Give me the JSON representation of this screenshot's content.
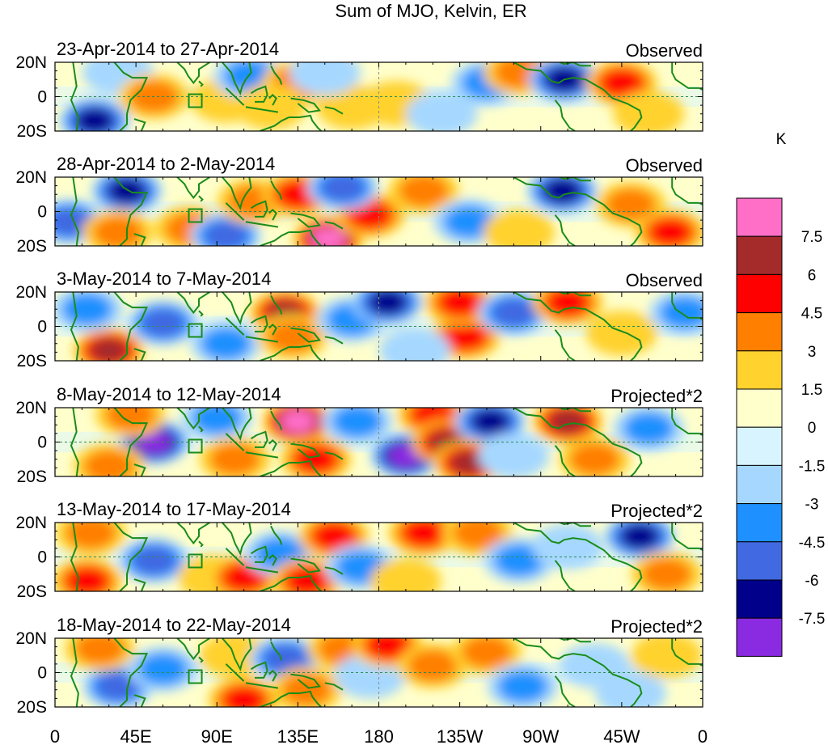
{
  "title": "Sum of MJO, Kelvin, ER",
  "chart_data": {
    "type": "heatmap",
    "title": "Sum of MJO, Kelvin, ER",
    "variable_unit": "K",
    "colorbar": {
      "unit": "K",
      "tick_labels": [
        "7.5",
        "6",
        "4.5",
        "3",
        "1.5",
        "0",
        "-1.5",
        "-3",
        "-4.5",
        "-6",
        "-7.5"
      ],
      "levels": [
        7.5,
        6,
        4.5,
        3,
        1.5,
        0,
        -1.5,
        -3,
        -4.5,
        -6,
        -7.5
      ],
      "colors": [
        "#ff6ec7",
        "#a52a2a",
        "#ff0000",
        "#ff7f00",
        "#ffd22e",
        "#ffffcc",
        "#d8f5ff",
        "#a6d8ff",
        "#1e90ff",
        "#4169e1",
        "#00008b",
        "#8a2be2"
      ]
    },
    "x_axis": {
      "tick_labels": [
        "0",
        "45E",
        "90E",
        "135E",
        "180",
        "135W",
        "90W",
        "45W",
        "0"
      ],
      "lon_range": [
        0,
        360
      ]
    },
    "y_axis": {
      "tick_labels": [
        "20N",
        "0",
        "20S"
      ],
      "lat_range": [
        -20,
        20
      ]
    },
    "panels": [
      {
        "label": "23-Apr-2014 to 27-Apr-2014",
        "tag": "Observed",
        "blobs": [
          {
            "lon": 22,
            "lat": -14,
            "v": -6.8
          },
          {
            "lon": 35,
            "lat": 14,
            "v": -2.5
          },
          {
            "lon": 55,
            "lat": 0,
            "v": 4.2
          },
          {
            "lon": 95,
            "lat": -2,
            "v": 2.5
          },
          {
            "lon": 108,
            "lat": 12,
            "v": -3.0
          },
          {
            "lon": 135,
            "lat": 8,
            "v": 3.6
          },
          {
            "lon": 120,
            "lat": -6,
            "v": 2.2
          },
          {
            "lon": 165,
            "lat": -6,
            "v": 1.8
          },
          {
            "lon": 190,
            "lat": -4,
            "v": 2.6
          },
          {
            "lon": 215,
            "lat": -10,
            "v": -2.8
          },
          {
            "lon": 240,
            "lat": 8,
            "v": -3.0
          },
          {
            "lon": 258,
            "lat": 14,
            "v": 3.4
          },
          {
            "lon": 283,
            "lat": 10,
            "v": -7.0
          },
          {
            "lon": 315,
            "lat": 8,
            "v": 5.0
          },
          {
            "lon": 330,
            "lat": -10,
            "v": 2.5
          },
          {
            "lon": 150,
            "lat": 14,
            "v": -2.0
          }
        ]
      },
      {
        "label": "28-Apr-2014 to 2-May-2014",
        "tag": "Observed",
        "blobs": [
          {
            "lon": 8,
            "lat": -6,
            "v": -5.5
          },
          {
            "lon": 40,
            "lat": 12,
            "v": -6.8
          },
          {
            "lon": 35,
            "lat": -12,
            "v": 3.8
          },
          {
            "lon": 75,
            "lat": -10,
            "v": 4.0
          },
          {
            "lon": 95,
            "lat": -14,
            "v": -5.0
          },
          {
            "lon": 110,
            "lat": 6,
            "v": 3.0
          },
          {
            "lon": 135,
            "lat": 10,
            "v": 5.8
          },
          {
            "lon": 152,
            "lat": -16,
            "v": 7.8
          },
          {
            "lon": 175,
            "lat": -2,
            "v": 5.0
          },
          {
            "lon": 160,
            "lat": 14,
            "v": -4.5
          },
          {
            "lon": 205,
            "lat": 12,
            "v": 3.0
          },
          {
            "lon": 230,
            "lat": -6,
            "v": -3.2
          },
          {
            "lon": 282,
            "lat": 12,
            "v": -6.5
          },
          {
            "lon": 320,
            "lat": 4,
            "v": 3.2
          },
          {
            "lon": 342,
            "lat": -12,
            "v": 5.5
          },
          {
            "lon": 258,
            "lat": -12,
            "v": 2.4
          }
        ]
      },
      {
        "label": "3-May-2014 to 7-May-2014",
        "tag": "Observed",
        "blobs": [
          {
            "lon": 30,
            "lat": -14,
            "v": 6.0
          },
          {
            "lon": 18,
            "lat": 10,
            "v": -3.2
          },
          {
            "lon": 60,
            "lat": 2,
            "v": -4.5
          },
          {
            "lon": 95,
            "lat": -10,
            "v": -3.6
          },
          {
            "lon": 128,
            "lat": 8,
            "v": 6.2
          },
          {
            "lon": 132,
            "lat": -6,
            "v": 4.2
          },
          {
            "lon": 165,
            "lat": 4,
            "v": -3.0
          },
          {
            "lon": 185,
            "lat": 14,
            "v": -6.5
          },
          {
            "lon": 228,
            "lat": -6,
            "v": 5.5
          },
          {
            "lon": 225,
            "lat": 14,
            "v": 4.6
          },
          {
            "lon": 255,
            "lat": 8,
            "v": -4.5
          },
          {
            "lon": 285,
            "lat": 14,
            "v": 5.8
          },
          {
            "lon": 315,
            "lat": -4,
            "v": 2.5
          },
          {
            "lon": 350,
            "lat": 8,
            "v": -3.0
          },
          {
            "lon": 200,
            "lat": -14,
            "v": -2.5
          }
        ]
      },
      {
        "label": "8-May-2014 to 12-May-2014",
        "tag": "Projected*2",
        "blobs": [
          {
            "lon": 55,
            "lat": 0,
            "v": -8.0
          },
          {
            "lon": 30,
            "lat": -14,
            "v": 3.2
          },
          {
            "lon": 42,
            "lat": 16,
            "v": 3.8
          },
          {
            "lon": 90,
            "lat": 14,
            "v": -3.0
          },
          {
            "lon": 100,
            "lat": -10,
            "v": 4.2
          },
          {
            "lon": 135,
            "lat": 12,
            "v": 7.8
          },
          {
            "lon": 145,
            "lat": -10,
            "v": 4.5
          },
          {
            "lon": 168,
            "lat": 12,
            "v": -4.0
          },
          {
            "lon": 195,
            "lat": -8,
            "v": -7.8
          },
          {
            "lon": 210,
            "lat": 16,
            "v": 5.0
          },
          {
            "lon": 218,
            "lat": 0,
            "v": 6.0
          },
          {
            "lon": 242,
            "lat": 12,
            "v": -6.8
          },
          {
            "lon": 230,
            "lat": -12,
            "v": 6.0
          },
          {
            "lon": 285,
            "lat": 12,
            "v": 6.8
          },
          {
            "lon": 300,
            "lat": -10,
            "v": 4.0
          },
          {
            "lon": 330,
            "lat": 8,
            "v": -3.5
          },
          {
            "lon": 255,
            "lat": -8,
            "v": -2.8
          }
        ]
      },
      {
        "label": "13-May-2014 to 17-May-2014",
        "tag": "Projected*2",
        "blobs": [
          {
            "lon": 55,
            "lat": -2,
            "v": -5.5
          },
          {
            "lon": 20,
            "lat": 14,
            "v": 4.0
          },
          {
            "lon": 18,
            "lat": -14,
            "v": 5.0
          },
          {
            "lon": 88,
            "lat": -12,
            "v": 2.8
          },
          {
            "lon": 105,
            "lat": -12,
            "v": 5.0
          },
          {
            "lon": 125,
            "lat": 2,
            "v": -4.0
          },
          {
            "lon": 140,
            "lat": -14,
            "v": 5.5
          },
          {
            "lon": 155,
            "lat": 12,
            "v": 4.5
          },
          {
            "lon": 170,
            "lat": -6,
            "v": -3.0
          },
          {
            "lon": 205,
            "lat": 14,
            "v": 5.8
          },
          {
            "lon": 235,
            "lat": 14,
            "v": 3.6
          },
          {
            "lon": 258,
            "lat": -2,
            "v": -3.0
          },
          {
            "lon": 285,
            "lat": 6,
            "v": -2.4
          },
          {
            "lon": 325,
            "lat": 12,
            "v": -6.5
          },
          {
            "lon": 340,
            "lat": -10,
            "v": 3.0
          },
          {
            "lon": 195,
            "lat": -14,
            "v": 2.2
          }
        ]
      },
      {
        "label": "18-May-2014 to 22-May-2014",
        "tag": "Projected*2",
        "blobs": [
          {
            "lon": 35,
            "lat": -8,
            "v": -4.5
          },
          {
            "lon": 25,
            "lat": 14,
            "v": 3.2
          },
          {
            "lon": 60,
            "lat": 2,
            "v": -3.2
          },
          {
            "lon": 100,
            "lat": 10,
            "v": 2.6
          },
          {
            "lon": 105,
            "lat": -16,
            "v": 4.8
          },
          {
            "lon": 128,
            "lat": 8,
            "v": -5.0
          },
          {
            "lon": 140,
            "lat": -10,
            "v": 3.4
          },
          {
            "lon": 160,
            "lat": 14,
            "v": 3.8
          },
          {
            "lon": 175,
            "lat": -2,
            "v": -2.4
          },
          {
            "lon": 185,
            "lat": 16,
            "v": 4.8
          },
          {
            "lon": 210,
            "lat": 4,
            "v": 3.4
          },
          {
            "lon": 240,
            "lat": 12,
            "v": 4.2
          },
          {
            "lon": 260,
            "lat": -8,
            "v": -3.4
          },
          {
            "lon": 300,
            "lat": 4,
            "v": -2.6
          },
          {
            "lon": 320,
            "lat": -12,
            "v": -2.4
          },
          {
            "lon": 340,
            "lat": 10,
            "v": 2.2
          }
        ]
      }
    ]
  }
}
